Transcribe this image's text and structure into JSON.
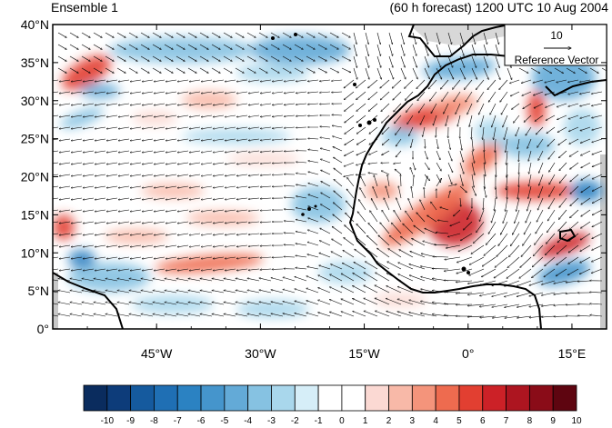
{
  "header": {
    "left_title": "Ensemble 1",
    "right_title": "(60 h forecast) 1200 UTC 10 Aug 2004"
  },
  "map": {
    "lat_labels": [
      "40°N",
      "35°N",
      "30°N",
      "25°N",
      "20°N",
      "15°N",
      "10°N",
      "5°N",
      "0°"
    ],
    "lon_labels": [
      "45°W",
      "30°W",
      "15°W",
      "0°",
      "15°E"
    ],
    "lon_values": [
      -45,
      -30,
      -15,
      0,
      15
    ],
    "lat_values": [
      40,
      35,
      30,
      25,
      20,
      15,
      10,
      5,
      0
    ],
    "lon_range": [
      -60,
      20
    ],
    "lat_range": [
      0,
      40
    ]
  },
  "reference_vector": {
    "magnitude_label": "10",
    "caption": "Reference Vector"
  },
  "colorbar": {
    "labels": [
      "-10",
      "-9",
      "-8",
      "-7",
      "-6",
      "-5",
      "-4",
      "-3",
      "-2",
      "-1",
      "0",
      "1",
      "2",
      "3",
      "4",
      "5",
      "6",
      "7",
      "8",
      "9",
      "10"
    ],
    "colors": [
      "#0a2c5e",
      "#0d3c7a",
      "#155a9e",
      "#1f6fb4",
      "#2b82c2",
      "#4595cc",
      "#63aad7",
      "#86c2e2",
      "#a9d7ec",
      "#d6eef8",
      "#ffffff",
      "#ffffff",
      "#fbd9d3",
      "#f8b9a8",
      "#f4947b",
      "#ee6b4f",
      "#e23f31",
      "#cc2127",
      "#ad1520",
      "#8a0c18",
      "#5e0510"
    ]
  },
  "shading": {
    "palette": {
      "land_gray": "#c8c8c8",
      "ocean": "#ffffff"
    }
  }
}
